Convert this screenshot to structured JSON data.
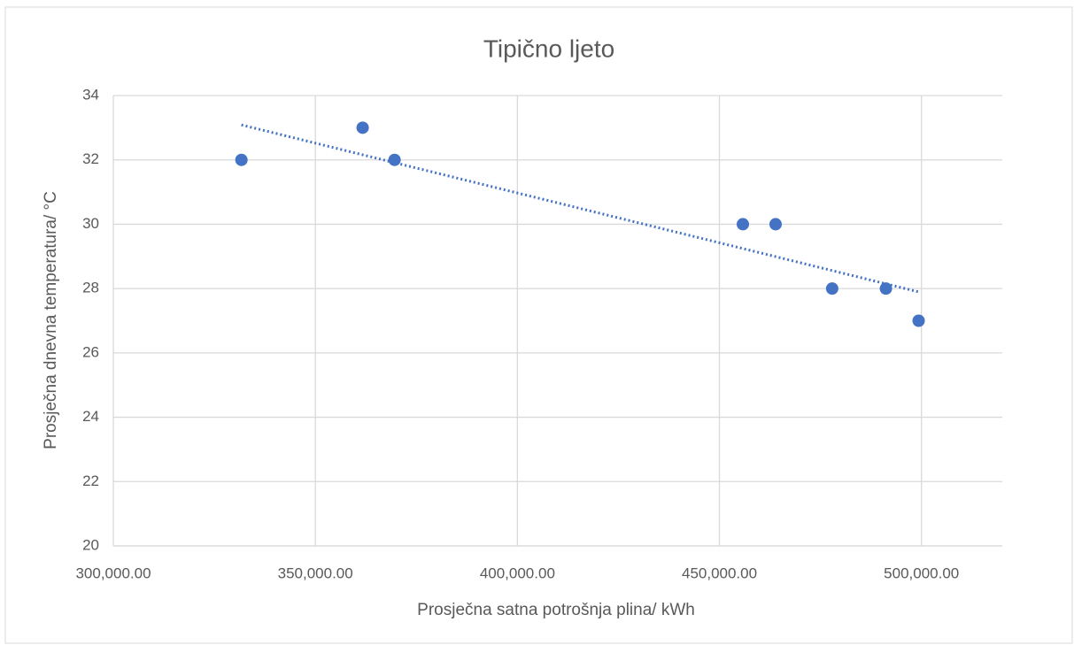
{
  "chart_data": {
    "type": "scatter",
    "title": "Tipično ljeto",
    "x_label": "Prosječna satna potrošnja plina/ kWh",
    "y_label": "Prosječna dnevna temperatura/ °C",
    "series": [
      {
        "color": "#4472c4",
        "x": [
          331700,
          361700,
          369600,
          455800,
          463900,
          477900,
          491200,
          499300
        ],
        "values": [
          32,
          33,
          32,
          30,
          30,
          28,
          28,
          27
        ]
      }
    ],
    "trendline": "linear",
    "xlim": [
      300000,
      520000
    ],
    "xticks": [
      {
        "value": 300000,
        "label": "300,000.00"
      },
      {
        "value": 350000,
        "label": "350,000.00"
      },
      {
        "value": 400000,
        "label": "400,000.00"
      },
      {
        "value": 450000,
        "label": "450,000.00"
      },
      {
        "value": 500000,
        "label": "500,000.00"
      }
    ],
    "ylim": [
      20,
      34
    ],
    "yticks": [
      20,
      22,
      24,
      26,
      28,
      30,
      32,
      34
    ],
    "grid": true
  }
}
